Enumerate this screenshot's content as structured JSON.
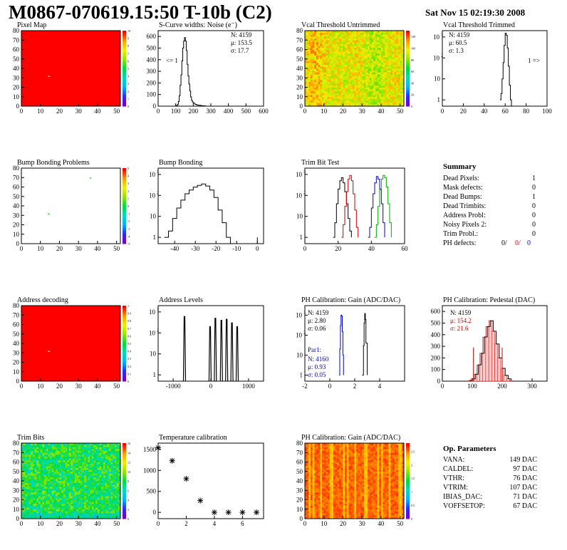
{
  "header": {
    "title": "M0867-070619.15:50 T-10b (C2)",
    "date": "Sat Nov 15 02:19:30 2008"
  },
  "colors": {
    "hot": "#ff0000",
    "black_line": "#000000",
    "red_line": "#cc0000",
    "blue_line": "#0000cc",
    "green_line": "#00aa00"
  },
  "panels": {
    "pixel_map": {
      "title": "Pixel Map"
    },
    "scurve": {
      "title": "S-Curve widths: Noise (e⁻)",
      "stat_n": "N: 4159",
      "stat_mu": "μ: 153.5",
      "stat_sigma": "σ: 17.7",
      "underflow": "<= 1"
    },
    "vcal_untrimmed": {
      "title": "Vcal Threshold Untrimmed"
    },
    "vcal_trimmed": {
      "title": "Vcal Threshold Trimmed",
      "stat_n": "N: 4159",
      "stat_mu": "μ: 60.5",
      "stat_sigma": "σ:  1.3",
      "overflow": "1 =>"
    },
    "bump_problems": {
      "title": "Bump Bonding Problems"
    },
    "bump_bonding": {
      "title": "Bump Bonding"
    },
    "trim_bit_test": {
      "title": "Trim Bit Test"
    },
    "address_decoding": {
      "title": "Address decoding"
    },
    "address_levels": {
      "title": "Address Levels"
    },
    "ph_gain": {
      "title": "PH Calibration: Gain (ADC/DAC)",
      "stat_n": "N: 4159",
      "stat_mu": "μ: 2.80",
      "stat_sigma": "σ: 0.06",
      "par_label": "Par1:",
      "par_n": "N: 4160",
      "par_mu": "μ: 0.93",
      "par_sigma": "σ: 0.05"
    },
    "ph_pedestal": {
      "title": "PH Calibration: Pedestal (DAC)",
      "stat_n": "N: 4159",
      "stat_mu": "μ: 154.2",
      "stat_sigma": "σ: 21.6"
    },
    "trim_bits": {
      "title": "Trim Bits"
    },
    "temperature": {
      "title": "Temperature calibration"
    },
    "ph_gain_map": {
      "title": "PH Calibration: Gain (ADC/DAC)"
    }
  },
  "summary": {
    "title": "Summary",
    "rows": [
      {
        "label": "Dead Pixels:",
        "value": "1"
      },
      {
        "label": "Mask defects:",
        "value": "0"
      },
      {
        "label": "Dead Bumps:",
        "value": "1"
      },
      {
        "label": "Dead Trimbits:",
        "value": "0"
      },
      {
        "label": "Address Probl:",
        "value": "0"
      },
      {
        "label": "Noisy Pixels 2:",
        "value": "0"
      },
      {
        "label": "Trim Probl.:",
        "value": "0"
      }
    ],
    "ph_label": "PH defects:",
    "ph_values": [
      "0/",
      "0/",
      "0"
    ]
  },
  "op_params": {
    "title": "Op. Parameters",
    "rows": [
      {
        "label": "VANA:",
        "value": "149 DAC"
      },
      {
        "label": "CALDEL:",
        "value": "97 DAC"
      },
      {
        "label": "VTHR:",
        "value": "76 DAC"
      },
      {
        "label": "VTRIM:",
        "value": "107 DAC"
      },
      {
        "label": "IBIAS_DAC:",
        "value": "71 DAC"
      },
      {
        "label": "VOFFSETOP:",
        "value": "67 DAC"
      }
    ]
  },
  "chart_data": [
    {
      "id": "pixel_map",
      "type": "heatmap",
      "title": "Pixel Map",
      "xlim": [
        0,
        52
      ],
      "ylim": [
        0,
        80
      ],
      "xticks": [
        0,
        10,
        20,
        30,
        40,
        50
      ],
      "yticks": [
        0,
        10,
        20,
        30,
        40,
        50,
        60,
        70,
        80
      ],
      "zlim": [
        0,
        10
      ],
      "zticks": [
        0,
        1,
        2,
        3,
        4,
        5,
        6,
        7,
        8,
        9,
        10
      ],
      "fill_value": 10,
      "dead_pixels": [
        [
          14,
          31
        ]
      ]
    },
    {
      "id": "scurve",
      "type": "line",
      "title": "S-Curve widths: Noise (e⁻)",
      "xlim": [
        0,
        600
      ],
      "ylim": [
        0,
        650
      ],
      "xticks": [
        0,
        100,
        200,
        300,
        400,
        500,
        600
      ],
      "yticks": [
        0,
        100,
        200,
        300,
        400,
        500,
        600
      ],
      "x": [
        90,
        100,
        110,
        115,
        120,
        125,
        130,
        135,
        140,
        145,
        150,
        155,
        160,
        165,
        170,
        175,
        180,
        185,
        190,
        195,
        200,
        210,
        220,
        230,
        240,
        250,
        260,
        270
      ],
      "y": [
        0,
        5,
        15,
        40,
        90,
        180,
        270,
        390,
        500,
        560,
        590,
        560,
        480,
        360,
        260,
        190,
        130,
        80,
        50,
        35,
        25,
        15,
        10,
        8,
        5,
        3,
        2,
        0
      ]
    },
    {
      "id": "vcal_untrimmed",
      "type": "heatmap",
      "title": "Vcal Threshold Untrimmed",
      "xlim": [
        0,
        52
      ],
      "ylim": [
        0,
        80
      ],
      "xticks": [
        0,
        10,
        20,
        30,
        40,
        50
      ],
      "yticks": [
        0,
        10,
        20,
        30,
        40,
        50,
        60,
        70,
        80
      ],
      "zlim": [
        0,
        130
      ],
      "zticks": [
        0,
        20,
        40,
        60,
        80,
        100,
        120
      ]
    },
    {
      "id": "vcal_trimmed",
      "type": "line",
      "title": "Vcal Threshold Trimmed",
      "log_y": true,
      "xlim": [
        0,
        100
      ],
      "ylim": [
        0.5,
        2000
      ],
      "xticks": [
        0,
        20,
        40,
        60,
        80,
        100
      ],
      "yticks": [
        1,
        10,
        100,
        1000
      ],
      "x": [
        55,
        56,
        57,
        58,
        59,
        60,
        61,
        62,
        63,
        64,
        65,
        66
      ],
      "y": [
        1,
        2,
        10,
        60,
        400,
        1500,
        1200,
        300,
        40,
        5,
        1,
        0
      ]
    },
    {
      "id": "bump_problems",
      "type": "heatmap",
      "title": "Bump Bonding Problems",
      "xlim": [
        0,
        52
      ],
      "ylim": [
        0,
        80
      ],
      "xticks": [
        0,
        10,
        20,
        30,
        40,
        50
      ],
      "yticks": [
        0,
        10,
        20,
        30,
        40,
        50,
        60,
        70,
        80
      ],
      "zlim": [
        -5,
        5
      ],
      "zticks": [
        -5,
        -4,
        -3,
        -2,
        -1,
        0,
        1,
        2,
        3,
        4,
        5
      ],
      "marks": [
        [
          36,
          69
        ],
        [
          14,
          31
        ]
      ]
    },
    {
      "id": "bump_bonding",
      "type": "line",
      "title": "Bump Bonding",
      "log_y": true,
      "xlim": [
        -48,
        3
      ],
      "ylim": [
        0.5,
        2000
      ],
      "xticks": [
        -40,
        -30,
        -20,
        -10,
        0
      ],
      "yticks": [
        1,
        10,
        100,
        1000
      ],
      "x": [
        -45,
        -43,
        -41,
        -39,
        -37,
        -35,
        -33,
        -31,
        -29,
        -27,
        -25,
        -23,
        -21,
        -19,
        -17,
        -15,
        -13
      ],
      "y": [
        1,
        2,
        8,
        25,
        60,
        120,
        180,
        250,
        300,
        350,
        280,
        180,
        80,
        20,
        5,
        1,
        0
      ]
    },
    {
      "id": "trim_bit_test",
      "type": "line",
      "title": "Trim Bit Test",
      "log_y": true,
      "xlim": [
        0,
        60
      ],
      "ylim": [
        0.5,
        2000
      ],
      "xticks": [
        0,
        20,
        40,
        60
      ],
      "yticks": [
        1,
        10,
        100,
        1000
      ],
      "series": [
        {
          "color": "#000000",
          "x": [
            17,
            18,
            19,
            20,
            21,
            22,
            23,
            24,
            25,
            26,
            27,
            28
          ],
          "y": [
            1,
            5,
            40,
            200,
            500,
            700,
            400,
            150,
            40,
            8,
            2,
            1
          ]
        },
        {
          "color": "#cc0000",
          "x": [
            22,
            23,
            24,
            25,
            26,
            27,
            28,
            29,
            30,
            31,
            32
          ],
          "y": [
            1,
            4,
            30,
            150,
            600,
            900,
            500,
            120,
            20,
            3,
            1
          ]
        },
        {
          "color": "#0000cc",
          "x": [
            38,
            39,
            40,
            41,
            42,
            43,
            44,
            45,
            46,
            47,
            48
          ],
          "y": [
            1,
            3,
            25,
            120,
            400,
            800,
            600,
            200,
            40,
            5,
            1
          ]
        },
        {
          "color": "#00aa00",
          "x": [
            42,
            43,
            44,
            45,
            46,
            47,
            48,
            49,
            50,
            51,
            52
          ],
          "y": [
            1,
            4,
            30,
            180,
            600,
            900,
            700,
            250,
            40,
            5,
            1
          ]
        }
      ]
    },
    {
      "id": "address_decoding",
      "type": "heatmap",
      "title": "Address decoding",
      "xlim": [
        0,
        52
      ],
      "ylim": [
        0,
        80
      ],
      "xticks": [
        0,
        10,
        20,
        30,
        40,
        50
      ],
      "yticks": [
        0,
        10,
        20,
        30,
        40,
        50,
        60,
        70,
        80
      ],
      "zlim": [
        0,
        1
      ],
      "zticks": [
        0,
        0.1,
        0.2,
        0.3,
        0.4,
        0.5,
        0.6,
        0.7,
        0.8,
        0.9,
        1
      ],
      "fill_value": 1,
      "dead_pixels": [
        [
          14,
          31
        ]
      ]
    },
    {
      "id": "address_levels",
      "type": "line",
      "title": "Address Levels",
      "log_y": true,
      "xlim": [
        -1400,
        1400
      ],
      "ylim": [
        0.5,
        2000
      ],
      "xticks": [
        -1000,
        0,
        1000
      ],
      "yticks": [
        1,
        10,
        100,
        1000
      ],
      "peaks": [
        [
          -700,
          600
        ],
        [
          -20,
          200
        ],
        [
          120,
          500
        ],
        [
          280,
          400
        ],
        [
          420,
          450
        ],
        [
          560,
          300
        ],
        [
          700,
          200
        ]
      ]
    },
    {
      "id": "ph_gain",
      "type": "line",
      "title": "PH Calibration: Gain (ADC/DAC)",
      "log_y": true,
      "xlim": [
        -2,
        6
      ],
      "ylim": [
        0.5,
        3000
      ],
      "xticks": [
        -2,
        0,
        2,
        4
      ],
      "yticks": [
        1,
        10,
        100,
        1000
      ],
      "series": [
        {
          "color": "#000000",
          "x": [
            2.6,
            2.7,
            2.75,
            2.8,
            2.85,
            2.9,
            3.0
          ],
          "y": [
            1,
            30,
            400,
            1200,
            600,
            40,
            1
          ]
        },
        {
          "color": "#0000cc",
          "x": [
            0.75,
            0.8,
            0.85,
            0.9,
            0.95,
            1.0,
            1.05,
            1.1
          ],
          "y": [
            1,
            20,
            300,
            1000,
            900,
            150,
            10,
            1
          ]
        }
      ]
    },
    {
      "id": "ph_pedestal",
      "type": "bar",
      "title": "PH Calibration: Pedestal (DAC)",
      "xlim": [
        0,
        350
      ],
      "ylim": [
        0,
        650
      ],
      "xticks": [
        0,
        100,
        200,
        300
      ],
      "yticks": [
        0,
        100,
        200,
        300,
        400,
        500,
        600
      ],
      "x": [
        90,
        100,
        110,
        120,
        130,
        140,
        150,
        160,
        170,
        180,
        190,
        200,
        210,
        220,
        230
      ],
      "y": [
        5,
        20,
        60,
        140,
        240,
        380,
        470,
        520,
        430,
        320,
        200,
        110,
        50,
        20,
        5
      ],
      "limit_lines": [
        104,
        200
      ]
    },
    {
      "id": "trim_bits",
      "type": "heatmap",
      "title": "Trim Bits",
      "xlim": [
        0,
        52
      ],
      "ylim": [
        0,
        80
      ],
      "xticks": [
        0,
        10,
        20,
        30,
        40,
        50
      ],
      "yticks": [
        0,
        10,
        20,
        30,
        40,
        50,
        60,
        70,
        80
      ],
      "zlim": [
        0,
        16
      ],
      "zticks": [
        0,
        2,
        4,
        6,
        8,
        10,
        12,
        14,
        16
      ]
    },
    {
      "id": "temperature",
      "type": "scatter",
      "title": "Temperature calibration",
      "xlim": [
        0,
        7.5
      ],
      "ylim": [
        -150,
        1650
      ],
      "xticks": [
        0,
        2,
        4,
        6
      ],
      "yticks": [
        0,
        500,
        1000,
        1500
      ],
      "x": [
        0,
        1,
        2,
        3,
        4,
        5,
        6,
        7
      ],
      "y": [
        1540,
        1230,
        800,
        280,
        0,
        0,
        0,
        0
      ]
    },
    {
      "id": "ph_gain_map",
      "type": "heatmap",
      "title": "PH Calibration: Gain (ADC/DAC)",
      "xlim": [
        0,
        52
      ],
      "ylim": [
        0,
        80
      ],
      "xticks": [
        0,
        10,
        20,
        30,
        40,
        50
      ],
      "yticks": [
        0,
        10,
        20,
        30,
        40,
        50,
        60,
        70,
        80
      ],
      "zlim": [
        0,
        2.8
      ],
      "zticks": [
        0,
        0.5,
        1,
        1.5,
        2,
        2.5
      ]
    }
  ]
}
